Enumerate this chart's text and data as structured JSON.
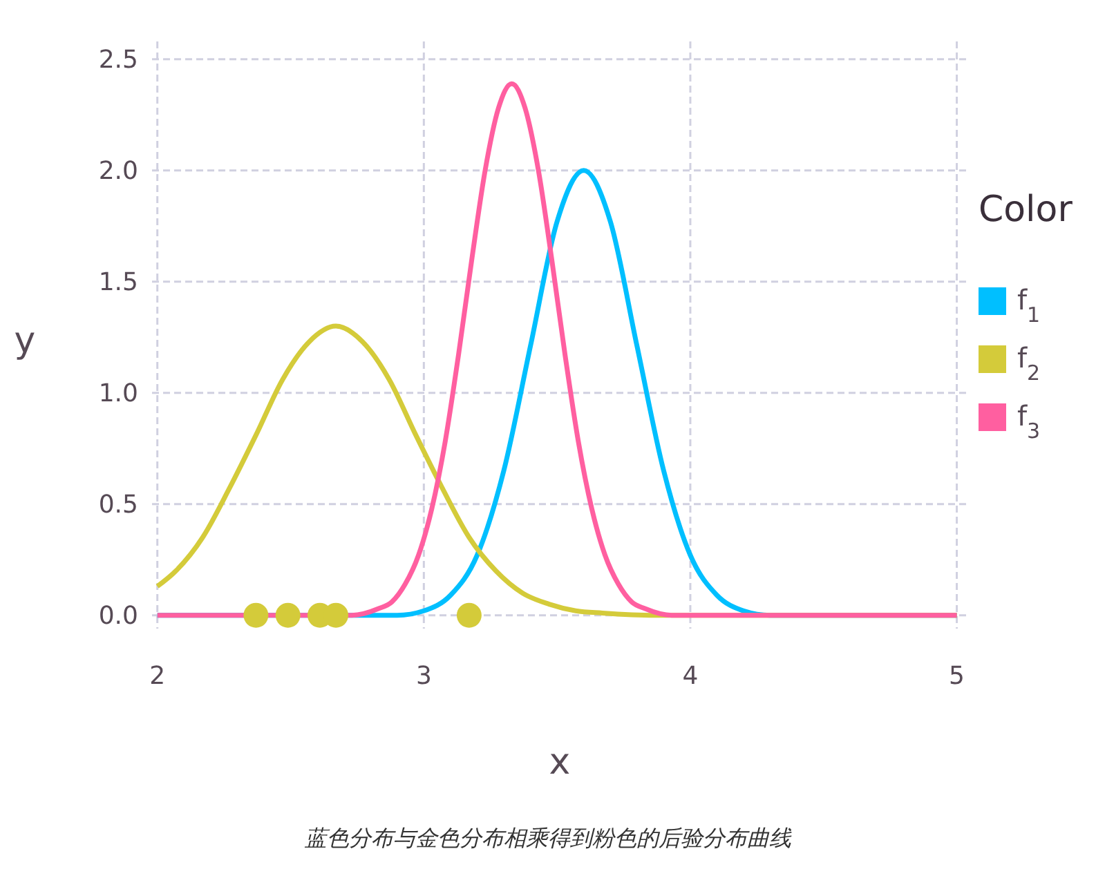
{
  "chart_data": {
    "type": "line",
    "xlabel": "x",
    "ylabel": "y",
    "legend_title": "Color",
    "legend": "right",
    "grid": true,
    "xlim": [
      1.98,
      5.04
    ],
    "ylim": [
      -0.06,
      2.58
    ],
    "xticks": [
      2,
      3,
      4,
      5
    ],
    "yticks": [
      {
        "value": 0,
        "label": "0.0"
      },
      {
        "value": 0.5,
        "label": "0.5"
      },
      {
        "value": 1,
        "label": "1.0"
      },
      {
        "value": 1.5,
        "label": "1.5"
      },
      {
        "value": 2,
        "label": "2.0"
      },
      {
        "value": 2.5,
        "label": "2.5"
      }
    ],
    "series": [
      {
        "name": "f$_{1}$",
        "color": "#00bfff",
        "x": [
          2,
          2.8,
          2.9,
          3.0,
          3.1,
          3.2,
          3.3,
          3.4,
          3.5,
          3.6,
          3.7,
          3.8,
          3.9,
          4.0,
          4.1,
          4.2,
          4.3,
          4.4,
          5
        ],
        "values": [
          0,
          0,
          0,
          0.02,
          0.09,
          0.27,
          0.65,
          1.21,
          1.77,
          2.0,
          1.77,
          1.21,
          0.65,
          0.27,
          0.09,
          0.02,
          0,
          0,
          0
        ]
      },
      {
        "name": "f$_{2}$",
        "color": "#d4cb3a",
        "x": [
          2,
          2.07,
          2.17,
          2.27,
          2.37,
          2.47,
          2.57,
          2.67,
          2.77,
          2.87,
          2.97,
          3.07,
          3.17,
          3.27,
          3.37,
          3.47,
          3.57,
          3.67,
          3.87,
          5
        ],
        "values": [
          0.13,
          0.2,
          0.35,
          0.57,
          0.81,
          1.06,
          1.23,
          1.3,
          1.23,
          1.06,
          0.81,
          0.57,
          0.35,
          0.2,
          0.1,
          0.05,
          0.02,
          0.01,
          0,
          0
        ]
      },
      {
        "name": "f$_{3}$",
        "color": "#ff5fa0",
        "x": [
          2,
          2.73,
          2.83,
          2.88,
          2.93,
          2.98,
          3.03,
          3.08,
          3.13,
          3.18,
          3.23,
          3.28,
          3.33,
          3.38,
          3.43,
          3.48,
          3.53,
          3.58,
          3.63,
          3.68,
          3.73,
          3.78,
          3.83,
          3.93,
          5
        ],
        "values": [
          0,
          0,
          0.03,
          0.06,
          0.14,
          0.27,
          0.48,
          0.78,
          1.17,
          1.6,
          2.0,
          2.28,
          2.39,
          2.28,
          2.0,
          1.6,
          1.17,
          0.78,
          0.48,
          0.27,
          0.14,
          0.06,
          0.03,
          0,
          0
        ]
      },
      {
        "type": "scatter",
        "marker": "circle",
        "color": "#d4cb3a",
        "x": [
          2.37,
          2.49,
          2.61,
          2.67,
          3.17
        ],
        "values": [
          0,
          0,
          0,
          0,
          0
        ]
      }
    ],
    "annotations": [
      "蓝色分布与金色分布相乘得到粉色的后验分布曲线"
    ]
  }
}
